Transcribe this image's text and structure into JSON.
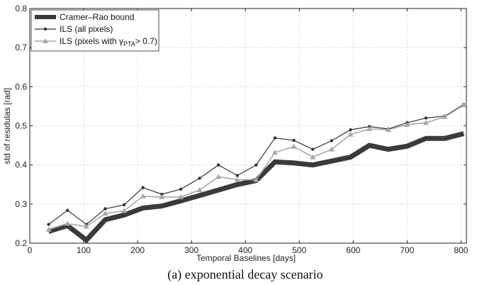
{
  "chart_data": {
    "type": "line",
    "caption": "(a)  exponential decay scenario",
    "xlabel": "Temporal Baselines [days]",
    "ylabel": "std of residulas [rad]",
    "xlim": [
      0,
      810
    ],
    "ylim": [
      0.2,
      0.8
    ],
    "xticks": [
      0,
      100,
      200,
      300,
      400,
      500,
      600,
      700,
      800
    ],
    "yticks": [
      0.2,
      0.3,
      0.4,
      0.5,
      0.6,
      0.7,
      0.8
    ],
    "grid": true,
    "legend_position": "top-left",
    "legend_labels": {
      "ils_sel_prefix": "ILS (pixels with ",
      "ils_sel_gamma": "γ",
      "ils_sel_sub": "PTA",
      "ils_sel_suffix": "> 0.7)"
    },
    "x": [
      35,
      70,
      105,
      140,
      175,
      210,
      245,
      280,
      315,
      350,
      385,
      420,
      455,
      490,
      525,
      560,
      595,
      630,
      665,
      700,
      735,
      770,
      805
    ],
    "series": [
      {
        "name": "Cramer–Rao bound",
        "color": "#3a3a3a",
        "style": "thick",
        "values": [
          0.23,
          0.245,
          0.208,
          0.26,
          0.272,
          0.29,
          0.295,
          0.308,
          0.322,
          0.336,
          0.35,
          0.36,
          0.408,
          0.405,
          0.4,
          0.41,
          0.42,
          0.45,
          0.44,
          0.448,
          0.468,
          0.468,
          0.48
        ]
      },
      {
        "name": "ILS (all pixels)",
        "color": "#333333",
        "style": "dot-marker",
        "values": [
          0.248,
          0.284,
          0.248,
          0.288,
          0.298,
          0.342,
          0.325,
          0.338,
          0.366,
          0.4,
          0.373,
          0.4,
          0.469,
          0.463,
          0.44,
          0.462,
          0.49,
          0.498,
          0.492,
          0.508,
          0.52,
          0.525,
          0.555
        ]
      },
      {
        "name": "ILS (pixels with γPTA> 0.7)",
        "color": "#a8a8a8",
        "style": "triangle-marker",
        "values": [
          0.235,
          0.25,
          0.243,
          0.276,
          0.283,
          0.32,
          0.318,
          0.318,
          0.336,
          0.37,
          0.362,
          0.362,
          0.432,
          0.447,
          0.42,
          0.44,
          0.478,
          0.492,
          0.49,
          0.503,
          0.508,
          0.523,
          0.553
        ]
      }
    ]
  }
}
